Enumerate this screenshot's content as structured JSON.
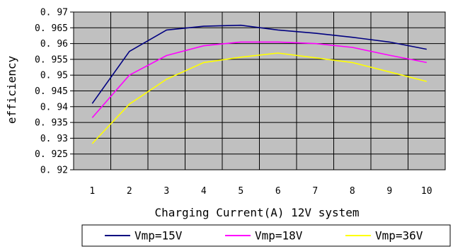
{
  "chart_data": {
    "type": "line",
    "title": "",
    "xlabel": "Charging Current(A) 12V system",
    "ylabel": "efficiency",
    "x": [
      1,
      2,
      3,
      4,
      5,
      6,
      7,
      8,
      9,
      10
    ],
    "xlim": [
      1,
      10
    ],
    "ylim": [
      0.92,
      0.97
    ],
    "ytick_step": 0.005,
    "yticks": [
      "0. 92",
      "0. 925",
      "0. 93",
      "0. 935",
      "0. 94",
      "0. 945",
      "0. 95",
      "0. 955",
      "0. 96",
      "0. 965",
      "0. 97"
    ],
    "xticks": [
      "1",
      "2",
      "3",
      "4",
      "5",
      "6",
      "7",
      "8",
      "9",
      "10"
    ],
    "grid": true,
    "plot_background": "#c0c0c0",
    "legend_position": "bottom",
    "series": [
      {
        "name": "Vmp=15V",
        "color": "#000080",
        "values": [
          0.941,
          0.9575,
          0.9643,
          0.9655,
          0.9658,
          0.9643,
          0.9633,
          0.962,
          0.9605,
          0.9582
        ]
      },
      {
        "name": "Vmp=18V",
        "color": "#ff00ff",
        "values": [
          0.9365,
          0.95,
          0.9562,
          0.9593,
          0.9605,
          0.9605,
          0.96,
          0.9588,
          0.9563,
          0.954
        ]
      },
      {
        "name": "Vmp=36V",
        "color": "#ffff00",
        "values": [
          0.9283,
          0.9408,
          0.9487,
          0.954,
          0.9557,
          0.957,
          0.9555,
          0.954,
          0.951,
          0.948
        ]
      }
    ]
  }
}
